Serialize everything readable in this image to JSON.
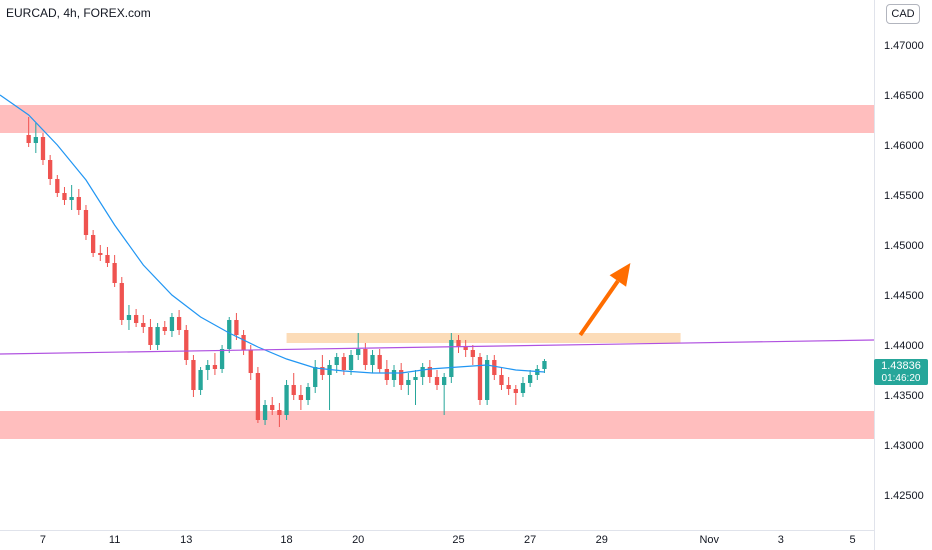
{
  "header": {
    "title": "EURCAD, 4h, FOREX.com",
    "currency": "CAD"
  },
  "last_price": {
    "value": "1.43836",
    "countdown": "01:46:20"
  },
  "colors": {
    "up": "#26a69a",
    "down": "#ef5350",
    "zone": "#ffb3b3",
    "breakout_zone": "#fcdcb8",
    "ma": "#2196f3",
    "trendline": "#b052e0",
    "arrow": "#ff6d00"
  },
  "chart_data": {
    "type": "candlestick",
    "symbol": "EURCAD",
    "timeframe": "4h",
    "source": "FOREX.com",
    "y_ticks": [
      1.425,
      1.43,
      1.435,
      1.44,
      1.445,
      1.45,
      1.455,
      1.46,
      1.465,
      1.47
    ],
    "y_tick_labels": [
      "1.42500",
      "1.43000",
      "1.43500",
      "1.44000",
      "1.44500",
      "1.45000",
      "1.45500",
      "1.46000",
      "1.46500",
      "1.47000"
    ],
    "ylim": [
      1.4215,
      1.4745
    ],
    "x_ticks": [
      {
        "label": "7",
        "bar": 2
      },
      {
        "label": "11",
        "bar": 12
      },
      {
        "label": "13",
        "bar": 22
      },
      {
        "label": "18",
        "bar": 36
      },
      {
        "label": "20",
        "bar": 46
      },
      {
        "label": "25",
        "bar": 60
      },
      {
        "label": "27",
        "bar": 70
      },
      {
        "label": "29",
        "bar": 80
      },
      {
        "label": "Nov",
        "bar": 95
      },
      {
        "label": "3",
        "bar": 105
      },
      {
        "label": "5",
        "bar": 115
      }
    ],
    "xlim": [
      -4,
      118
    ],
    "candles": [
      [
        1.461,
        1.4628,
        1.4598,
        1.4602
      ],
      [
        1.4602,
        1.4622,
        1.4592,
        1.4608
      ],
      [
        1.4608,
        1.4612,
        1.458,
        1.4585
      ],
      [
        1.4585,
        1.459,
        1.456,
        1.4566
      ],
      [
        1.4566,
        1.457,
        1.4548,
        1.4552
      ],
      [
        1.4552,
        1.4558,
        1.454,
        1.4545
      ],
      [
        1.4545,
        1.456,
        1.4535,
        1.4548
      ],
      [
        1.4548,
        1.4556,
        1.453,
        1.4535
      ],
      [
        1.4535,
        1.454,
        1.4505,
        1.451
      ],
      [
        1.451,
        1.4515,
        1.4488,
        1.4492
      ],
      [
        1.4492,
        1.45,
        1.4484,
        1.449
      ],
      [
        1.449,
        1.4498,
        1.4478,
        1.4482
      ],
      [
        1.4482,
        1.449,
        1.4458,
        1.4462
      ],
      [
        1.4462,
        1.4468,
        1.442,
        1.4425
      ],
      [
        1.4425,
        1.444,
        1.4415,
        1.443
      ],
      [
        1.443,
        1.4436,
        1.4418,
        1.4422
      ],
      [
        1.4422,
        1.443,
        1.4412,
        1.4418
      ],
      [
        1.4418,
        1.4426,
        1.4395,
        1.44
      ],
      [
        1.44,
        1.4422,
        1.4395,
        1.4418
      ],
      [
        1.4418,
        1.4424,
        1.441,
        1.4414
      ],
      [
        1.4414,
        1.4432,
        1.4408,
        1.4428
      ],
      [
        1.4428,
        1.4435,
        1.441,
        1.4415
      ],
      [
        1.4415,
        1.442,
        1.438,
        1.4385
      ],
      [
        1.4385,
        1.439,
        1.4348,
        1.4355
      ],
      [
        1.4355,
        1.4378,
        1.435,
        1.4375
      ],
      [
        1.4375,
        1.4385,
        1.4365,
        1.438
      ],
      [
        1.438,
        1.4392,
        1.437,
        1.4376
      ],
      [
        1.4376,
        1.44,
        1.4372,
        1.4396
      ],
      [
        1.4396,
        1.4428,
        1.4392,
        1.4425
      ],
      [
        1.4425,
        1.4432,
        1.4405,
        1.441
      ],
      [
        1.441,
        1.4415,
        1.439,
        1.4395
      ],
      [
        1.4395,
        1.44,
        1.4365,
        1.4372
      ],
      [
        1.4372,
        1.4378,
        1.4322,
        1.4325
      ],
      [
        1.4325,
        1.4345,
        1.432,
        1.434
      ],
      [
        1.434,
        1.4348,
        1.433,
        1.4335
      ],
      [
        1.4335,
        1.4342,
        1.4318,
        1.433
      ],
      [
        1.433,
        1.4365,
        1.4325,
        1.436
      ],
      [
        1.436,
        1.4372,
        1.4345,
        1.435
      ],
      [
        1.435,
        1.436,
        1.4335,
        1.4345
      ],
      [
        1.4345,
        1.4362,
        1.434,
        1.4358
      ],
      [
        1.4358,
        1.4385,
        1.4352,
        1.4378
      ],
      [
        1.4378,
        1.439,
        1.4365,
        1.437
      ],
      [
        1.437,
        1.4385,
        1.4335,
        1.438
      ],
      [
        1.438,
        1.4392,
        1.4372,
        1.4388
      ],
      [
        1.4388,
        1.4392,
        1.437,
        1.4375
      ],
      [
        1.4375,
        1.4395,
        1.437,
        1.439
      ],
      [
        1.439,
        1.4412,
        1.4385,
        1.4396
      ],
      [
        1.4396,
        1.4402,
        1.4375,
        1.438
      ],
      [
        1.438,
        1.4395,
        1.4372,
        1.439
      ],
      [
        1.439,
        1.4396,
        1.4372,
        1.4376
      ],
      [
        1.4376,
        1.4385,
        1.436,
        1.4365
      ],
      [
        1.4365,
        1.438,
        1.4358,
        1.4375
      ],
      [
        1.4375,
        1.4382,
        1.4355,
        1.436
      ],
      [
        1.436,
        1.4372,
        1.435,
        1.4365
      ],
      [
        1.4365,
        1.4375,
        1.434,
        1.4368
      ],
      [
        1.4368,
        1.4382,
        1.436,
        1.4378
      ],
      [
        1.4378,
        1.4385,
        1.4362,
        1.4368
      ],
      [
        1.4368,
        1.4375,
        1.4355,
        1.436
      ],
      [
        1.436,
        1.4372,
        1.433,
        1.4368
      ],
      [
        1.4368,
        1.4412,
        1.4362,
        1.4405
      ],
      [
        1.4405,
        1.441,
        1.4392,
        1.4398
      ],
      [
        1.4398,
        1.4405,
        1.4388,
        1.4395
      ],
      [
        1.4395,
        1.44,
        1.438,
        1.4388
      ],
      [
        1.4388,
        1.4392,
        1.434,
        1.4345
      ],
      [
        1.4345,
        1.439,
        1.434,
        1.4385
      ],
      [
        1.4385,
        1.439,
        1.4365,
        1.437
      ],
      [
        1.437,
        1.4378,
        1.4355,
        1.436
      ],
      [
        1.436,
        1.4368,
        1.435,
        1.4356
      ],
      [
        1.4356,
        1.436,
        1.434,
        1.4352
      ],
      [
        1.4352,
        1.4368,
        1.4348,
        1.4362
      ],
      [
        1.4362,
        1.4375,
        1.4358,
        1.437
      ],
      [
        1.437,
        1.438,
        1.4365,
        1.4376
      ],
      [
        1.4376,
        1.4386,
        1.4372,
        1.4384
      ]
    ],
    "moving_average": [
      [
        -4,
        1.465
      ],
      [
        0,
        1.463
      ],
      [
        4,
        1.46
      ],
      [
        8,
        1.4565
      ],
      [
        12,
        1.452
      ],
      [
        16,
        1.448
      ],
      [
        20,
        1.445
      ],
      [
        24,
        1.4428
      ],
      [
        28,
        1.4412
      ],
      [
        32,
        1.4398
      ],
      [
        36,
        1.4386
      ],
      [
        40,
        1.4377
      ],
      [
        44,
        1.4374
      ],
      [
        48,
        1.4372
      ],
      [
        52,
        1.4372
      ],
      [
        56,
        1.4376
      ],
      [
        60,
        1.4378
      ],
      [
        64,
        1.438
      ],
      [
        68,
        1.4375
      ],
      [
        72,
        1.4373
      ]
    ],
    "support_zones": [
      {
        "low": 1.4612,
        "high": 1.464,
        "color": "#ffb3b3"
      },
      {
        "low": 1.4306,
        "high": 1.4334,
        "color": "#ffb3b3"
      }
    ],
    "breakout_zone": {
      "low": 1.4402,
      "high": 1.4412,
      "start_bar": 36,
      "end_bar": 91
    },
    "trendline": {
      "start": [
        -4,
        1.4391
      ],
      "end": [
        118,
        1.4405
      ]
    },
    "arrow": {
      "from": [
        77,
        1.441
      ],
      "to": [
        84,
        1.4482
      ]
    }
  }
}
